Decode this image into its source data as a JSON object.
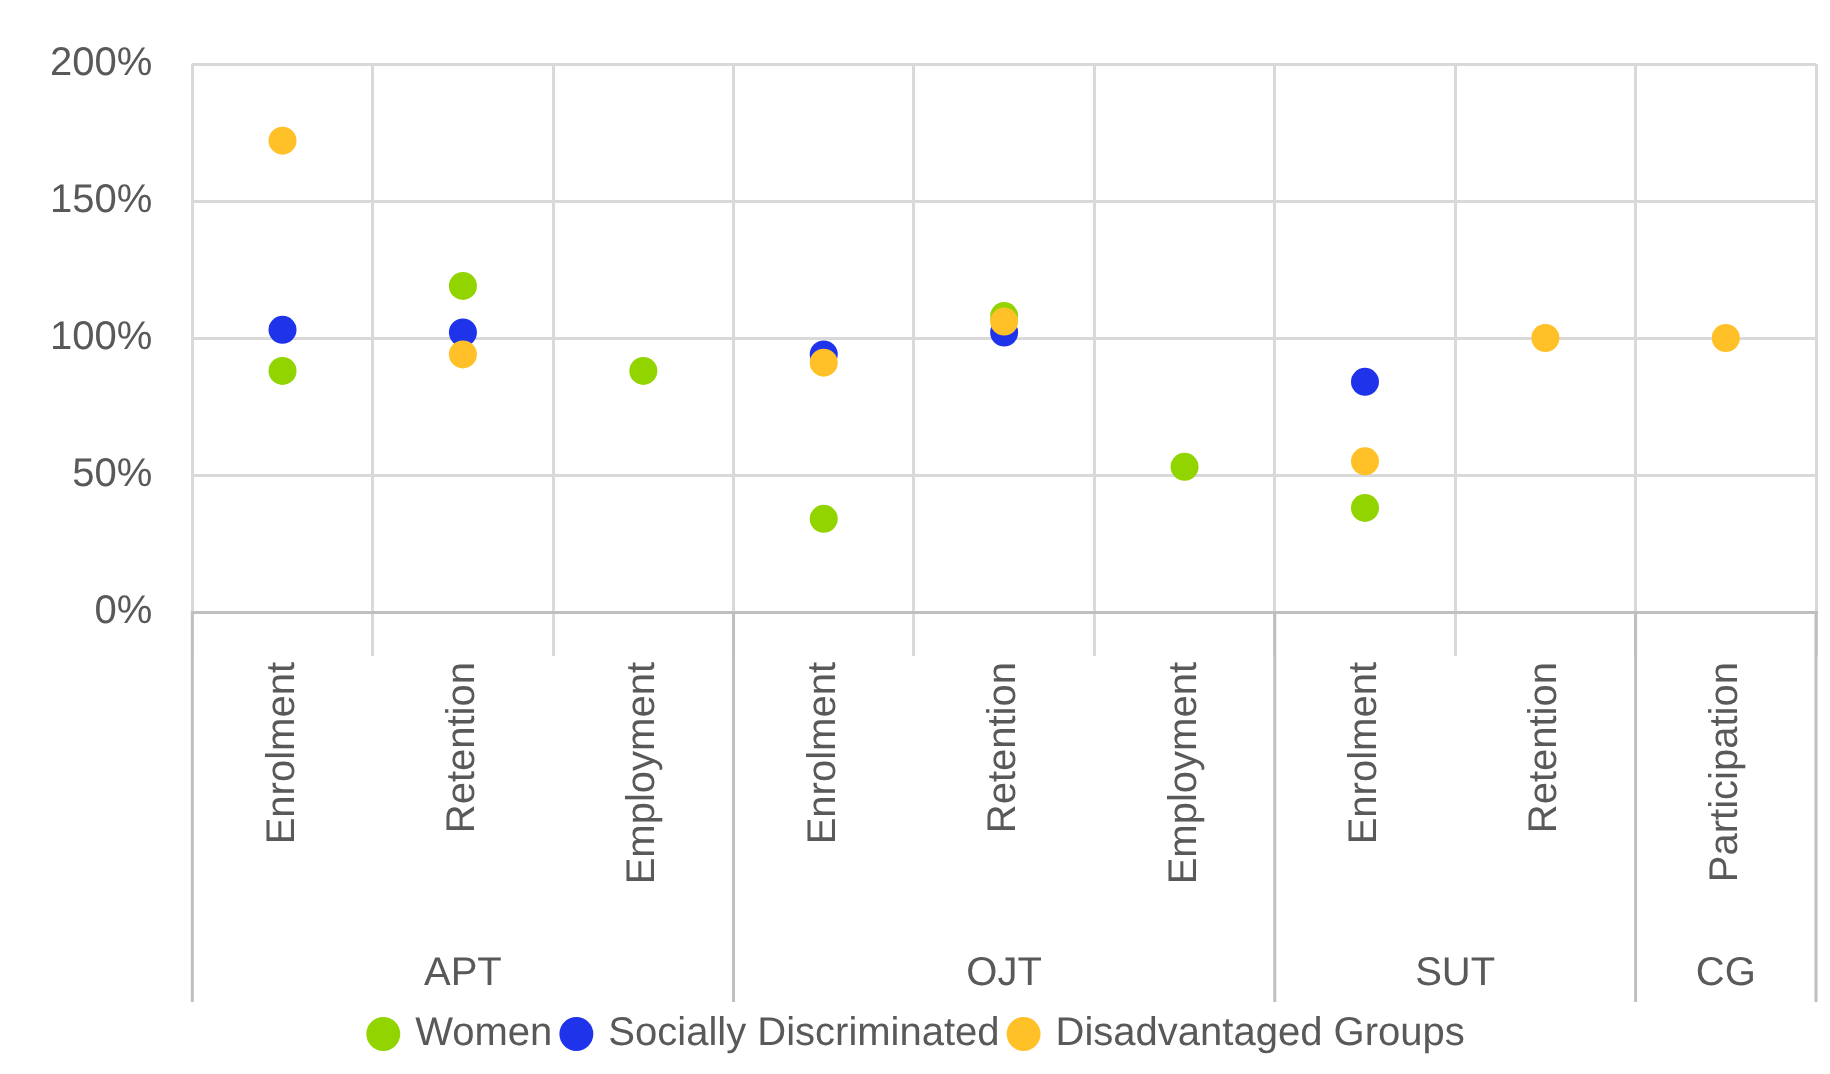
{
  "chart_data": {
    "type": "scatter",
    "categories": [
      "Enrolment",
      "Retention",
      "Employment",
      "Enrolment",
      "Retention",
      "Employment",
      "Enrolment",
      "Retention",
      "Participation"
    ],
    "series": [
      {
        "name": "Women",
        "color": "#92d400",
        "values": [
          88,
          119,
          88,
          34,
          108,
          53,
          38,
          null,
          null
        ]
      },
      {
        "name": "Socially Discriminated",
        "color": "#1f33eb",
        "values": [
          103,
          102,
          null,
          94,
          102,
          null,
          84,
          null,
          null
        ]
      },
      {
        "name": "Disadvantaged Groups",
        "color": "#ffc028",
        "values": [
          172,
          94,
          null,
          91,
          106,
          null,
          55,
          100,
          100
        ]
      }
    ],
    "ylim": [
      0,
      200
    ],
    "yticks": [
      {
        "value": 0,
        "label": "0%"
      },
      {
        "value": 50,
        "label": "50%"
      },
      {
        "value": 100,
        "label": "100%"
      },
      {
        "value": 150,
        "label": "150%"
      },
      {
        "value": 200,
        "label": "200%"
      }
    ],
    "annotations": [
      "APT",
      "OJT",
      "SUT",
      "CG"
    ],
    "grid": true,
    "legend": "bottom",
    "marker": "circle"
  }
}
